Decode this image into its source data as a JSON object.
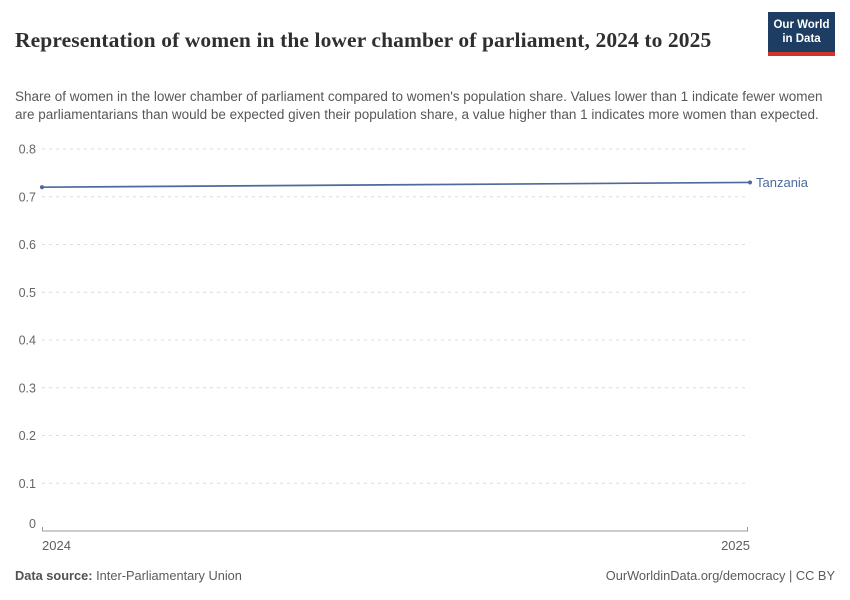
{
  "header": {
    "title": "Representation of women in the lower chamber of parliament, 2024 to 2025",
    "subtitle": "Share of women in the lower chamber of parliament compared to women's population share. Values lower than 1 indicate fewer women are parliamentarians than would be expected given their population share, a value higher than 1 indicates more women than expected.",
    "logo": {
      "line1": "Our World",
      "line2": "in Data",
      "bg_color": "#1d3d63",
      "accent_color": "#d0342c",
      "text_color": "#ffffff"
    }
  },
  "chart_data": {
    "type": "line",
    "title": "Representation of women in the lower chamber of parliament, 2024 to 2025",
    "x": [
      2024,
      2025
    ],
    "xlim": [
      2024,
      2025
    ],
    "ylim": [
      0,
      0.8
    ],
    "yticks": [
      0,
      0.1,
      0.2,
      0.3,
      0.4,
      0.5,
      0.6,
      0.7,
      0.8
    ],
    "xticks": [
      2024,
      2025
    ],
    "grid": "horizontal-dashed",
    "legend_position": "end-of-line-label",
    "series": [
      {
        "name": "Tanzania",
        "values": [
          0.72,
          0.73
        ],
        "color": "#4C6A9C"
      }
    ],
    "style": {
      "grid_color": "#dcdcdc",
      "axis_color": "#9a9a9a",
      "tick_label_color": "#666666"
    }
  },
  "footer": {
    "source_label": "Data source:",
    "source_value": "Inter-Parliamentary Union",
    "credit": "OurWorldinData.org/democracy | CC BY"
  }
}
